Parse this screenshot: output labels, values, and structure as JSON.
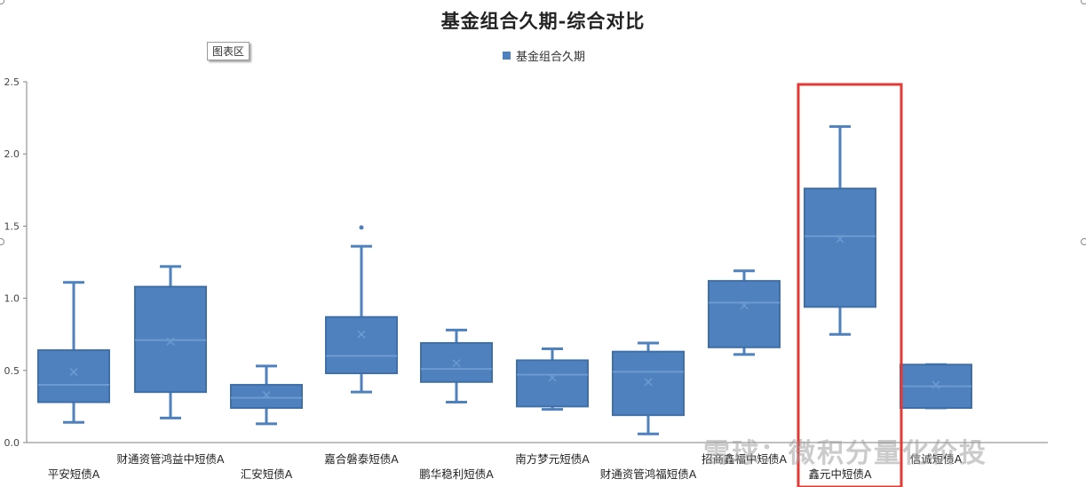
{
  "chart_area_label": "图表区",
  "watermark": "雪球：微积分量化价投",
  "chart_data": {
    "type": "boxplot",
    "title": "基金组合久期-综合对比",
    "legend": "基金组合久期",
    "legend_position": "top-center",
    "ylim": [
      0,
      2.5
    ],
    "yticks": [
      "0.0",
      "0.5",
      "1.0",
      "1.5",
      "2.0",
      "2.5"
    ],
    "grid": false,
    "color": "#4e81bd",
    "highlight_color": "#e53935",
    "highlight_index": 8,
    "series": [
      {
        "name": "平安短债A",
        "min": 0.14,
        "q1": 0.28,
        "median": 0.4,
        "mean": 0.49,
        "q3": 0.64,
        "max": 1.11,
        "outliers": []
      },
      {
        "name": "财通资管鸿益中短债A",
        "min": 0.17,
        "q1": 0.35,
        "median": 0.71,
        "mean": 0.7,
        "q3": 1.08,
        "max": 1.22,
        "outliers": []
      },
      {
        "name": "汇安短债A",
        "min": 0.13,
        "q1": 0.24,
        "median": 0.31,
        "mean": 0.33,
        "q3": 0.4,
        "max": 0.53,
        "outliers": []
      },
      {
        "name": "嘉合磐泰短债A",
        "min": 0.35,
        "q1": 0.48,
        "median": 0.6,
        "mean": 0.75,
        "q3": 0.87,
        "max": 1.36,
        "outliers": [
          1.49
        ]
      },
      {
        "name": "鹏华稳利短债A",
        "min": 0.28,
        "q1": 0.42,
        "median": 0.51,
        "mean": 0.55,
        "q3": 0.69,
        "max": 0.78,
        "outliers": []
      },
      {
        "name": "南方梦元短债A",
        "min": 0.23,
        "q1": 0.25,
        "median": 0.47,
        "mean": 0.45,
        "q3": 0.57,
        "max": 0.65,
        "outliers": []
      },
      {
        "name": "财通资管鸿福短债A",
        "min": 0.06,
        "q1": 0.19,
        "median": 0.49,
        "mean": 0.42,
        "q3": 0.63,
        "max": 0.69,
        "outliers": []
      },
      {
        "name": "招商鑫福中短债A",
        "min": 0.61,
        "q1": 0.66,
        "median": 0.97,
        "mean": 0.95,
        "q3": 1.12,
        "max": 1.19,
        "outliers": []
      },
      {
        "name": "鑫元中短债A",
        "min": 0.75,
        "q1": 0.94,
        "median": 1.43,
        "mean": 1.41,
        "q3": 1.76,
        "max": 2.19,
        "outliers": []
      },
      {
        "name": "信诚短债A",
        "min": 0.24,
        "q1": 0.24,
        "median": 0.39,
        "mean": 0.4,
        "q3": 0.54,
        "max": 0.54,
        "outliers": []
      }
    ]
  }
}
